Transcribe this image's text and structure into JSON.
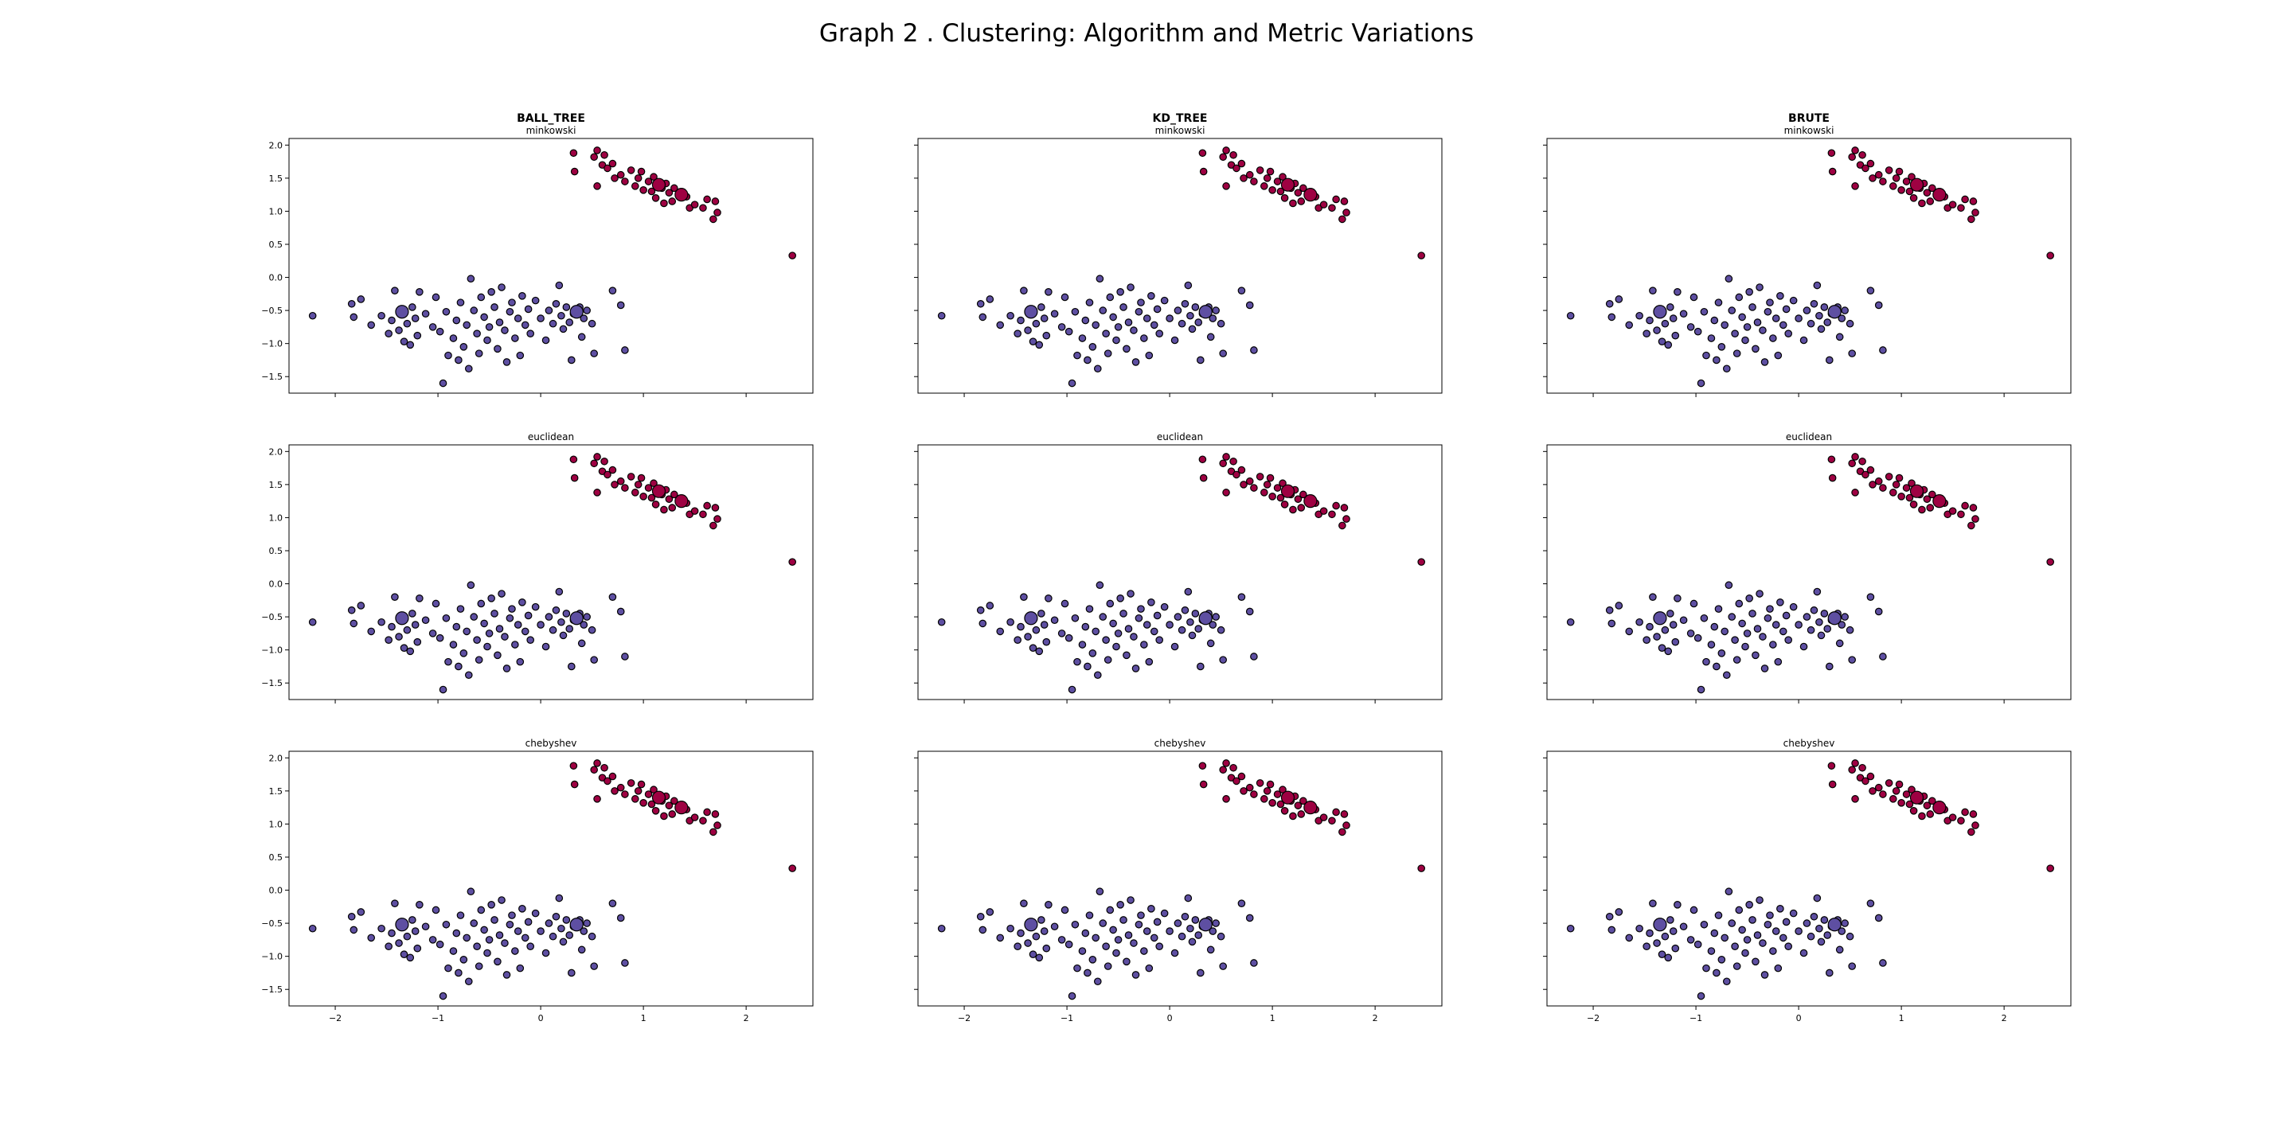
{
  "figure": {
    "suptitle": "Graph 2 . Clustering: Algorithm and Metric Variations"
  },
  "colors": {
    "cluster_0": "#5e4fa2",
    "cluster_1": "#9e0142",
    "marker_edge": "#000000"
  },
  "chart_data": {
    "type": "scatter",
    "grid": false,
    "legend": "none",
    "xlim": [
      -2.45,
      2.65
    ],
    "ylim": [
      -1.75,
      2.1
    ],
    "x_ticks": [
      -2,
      -1,
      0,
      1,
      2
    ],
    "y_ticks": [
      -1.5,
      -1.0,
      -0.5,
      0.0,
      0.5,
      1.0,
      1.5,
      2.0
    ],
    "x_tick_labels": [
      "−2",
      "−1",
      "0",
      "1",
      "2"
    ],
    "y_tick_labels": [
      "−1.5",
      "−1.0",
      "−0.5",
      "0.0",
      "0.5",
      "1.0",
      "1.5",
      "2.0"
    ],
    "algorithms": [
      "BALL_TREE",
      "KD_TREE",
      "BRUTE"
    ],
    "metrics": [
      "minkowski",
      "euclidean",
      "chebyshev"
    ],
    "centroids": [
      {
        "x": -1.35,
        "y": -0.52,
        "cluster": 0
      },
      {
        "x": 0.35,
        "y": -0.52,
        "cluster": 0
      },
      {
        "x": 1.15,
        "y": 1.4,
        "cluster": 1
      },
      {
        "x": 1.37,
        "y": 1.25,
        "cluster": 1
      }
    ],
    "points": [
      {
        "x": -2.22,
        "y": -0.58,
        "cluster": 0
      },
      {
        "x": -1.84,
        "y": -0.4,
        "cluster": 0
      },
      {
        "x": -1.82,
        "y": -0.6,
        "cluster": 0
      },
      {
        "x": -1.75,
        "y": -0.33,
        "cluster": 0
      },
      {
        "x": -1.65,
        "y": -0.72,
        "cluster": 0
      },
      {
        "x": -1.55,
        "y": -0.58,
        "cluster": 0
      },
      {
        "x": -1.48,
        "y": -0.85,
        "cluster": 0
      },
      {
        "x": -1.45,
        "y": -0.65,
        "cluster": 0
      },
      {
        "x": -1.42,
        "y": -0.2,
        "cluster": 0
      },
      {
        "x": -1.38,
        "y": -0.8,
        "cluster": 0
      },
      {
        "x": -1.33,
        "y": -0.97,
        "cluster": 0
      },
      {
        "x": -1.3,
        "y": -0.7,
        "cluster": 0
      },
      {
        "x": -1.27,
        "y": -1.02,
        "cluster": 0
      },
      {
        "x": -1.25,
        "y": -0.45,
        "cluster": 0
      },
      {
        "x": -1.22,
        "y": -0.62,
        "cluster": 0
      },
      {
        "x": -1.2,
        "y": -0.88,
        "cluster": 0
      },
      {
        "x": -1.18,
        "y": -0.22,
        "cluster": 0
      },
      {
        "x": -1.12,
        "y": -0.55,
        "cluster": 0
      },
      {
        "x": -1.05,
        "y": -0.75,
        "cluster": 0
      },
      {
        "x": -1.02,
        "y": -0.3,
        "cluster": 0
      },
      {
        "x": -0.98,
        "y": -0.82,
        "cluster": 0
      },
      {
        "x": -0.95,
        "y": -1.6,
        "cluster": 0
      },
      {
        "x": -0.92,
        "y": -0.52,
        "cluster": 0
      },
      {
        "x": -0.9,
        "y": -1.18,
        "cluster": 0
      },
      {
        "x": -0.85,
        "y": -0.92,
        "cluster": 0
      },
      {
        "x": -0.82,
        "y": -0.65,
        "cluster": 0
      },
      {
        "x": -0.8,
        "y": -1.25,
        "cluster": 0
      },
      {
        "x": -0.78,
        "y": -0.38,
        "cluster": 0
      },
      {
        "x": -0.75,
        "y": -1.05,
        "cluster": 0
      },
      {
        "x": -0.72,
        "y": -0.72,
        "cluster": 0
      },
      {
        "x": -0.7,
        "y": -1.38,
        "cluster": 0
      },
      {
        "x": -0.68,
        "y": -0.02,
        "cluster": 0
      },
      {
        "x": -0.65,
        "y": -0.5,
        "cluster": 0
      },
      {
        "x": -0.62,
        "y": -0.85,
        "cluster": 0
      },
      {
        "x": -0.6,
        "y": -1.15,
        "cluster": 0
      },
      {
        "x": -0.58,
        "y": -0.3,
        "cluster": 0
      },
      {
        "x": -0.55,
        "y": -0.6,
        "cluster": 0
      },
      {
        "x": -0.52,
        "y": -0.95,
        "cluster": 0
      },
      {
        "x": -0.5,
        "y": -0.75,
        "cluster": 0
      },
      {
        "x": -0.48,
        "y": -0.22,
        "cluster": 0
      },
      {
        "x": -0.45,
        "y": -0.45,
        "cluster": 0
      },
      {
        "x": -0.42,
        "y": -1.08,
        "cluster": 0
      },
      {
        "x": -0.4,
        "y": -0.68,
        "cluster": 0
      },
      {
        "x": -0.38,
        "y": -0.15,
        "cluster": 0
      },
      {
        "x": -0.35,
        "y": -0.8,
        "cluster": 0
      },
      {
        "x": -0.33,
        "y": -1.28,
        "cluster": 0
      },
      {
        "x": -0.3,
        "y": -0.52,
        "cluster": 0
      },
      {
        "x": -0.28,
        "y": -0.38,
        "cluster": 0
      },
      {
        "x": -0.25,
        "y": -0.92,
        "cluster": 0
      },
      {
        "x": -0.22,
        "y": -0.62,
        "cluster": 0
      },
      {
        "x": -0.2,
        "y": -1.18,
        "cluster": 0
      },
      {
        "x": -0.18,
        "y": -0.28,
        "cluster": 0
      },
      {
        "x": -0.15,
        "y": -0.72,
        "cluster": 0
      },
      {
        "x": -0.12,
        "y": -0.48,
        "cluster": 0
      },
      {
        "x": -0.1,
        "y": -0.85,
        "cluster": 0
      },
      {
        "x": -0.05,
        "y": -0.35,
        "cluster": 0
      },
      {
        "x": 0.0,
        "y": -0.62,
        "cluster": 0
      },
      {
        "x": 0.05,
        "y": -0.95,
        "cluster": 0
      },
      {
        "x": 0.08,
        "y": -0.5,
        "cluster": 0
      },
      {
        "x": 0.12,
        "y": -0.7,
        "cluster": 0
      },
      {
        "x": 0.15,
        "y": -0.4,
        "cluster": 0
      },
      {
        "x": 0.18,
        "y": -0.12,
        "cluster": 0
      },
      {
        "x": 0.2,
        "y": -0.58,
        "cluster": 0
      },
      {
        "x": 0.22,
        "y": -0.78,
        "cluster": 0
      },
      {
        "x": 0.25,
        "y": -0.45,
        "cluster": 0
      },
      {
        "x": 0.28,
        "y": -0.68,
        "cluster": 0
      },
      {
        "x": 0.3,
        "y": -1.25,
        "cluster": 0
      },
      {
        "x": 0.32,
        "y": -0.55,
        "cluster": 0
      },
      {
        "x": 0.38,
        "y": -0.45,
        "cluster": 0
      },
      {
        "x": 0.4,
        "y": -0.9,
        "cluster": 0
      },
      {
        "x": 0.42,
        "y": -0.62,
        "cluster": 0
      },
      {
        "x": 0.45,
        "y": -0.5,
        "cluster": 0
      },
      {
        "x": 0.5,
        "y": -0.7,
        "cluster": 0
      },
      {
        "x": 0.52,
        "y": -1.15,
        "cluster": 0
      },
      {
        "x": 0.7,
        "y": -0.2,
        "cluster": 0
      },
      {
        "x": 0.78,
        "y": -0.42,
        "cluster": 0
      },
      {
        "x": 0.82,
        "y": -1.1,
        "cluster": 0
      },
      {
        "x": 0.32,
        "y": 1.88,
        "cluster": 1
      },
      {
        "x": 0.33,
        "y": 1.6,
        "cluster": 1
      },
      {
        "x": 0.52,
        "y": 1.82,
        "cluster": 1
      },
      {
        "x": 0.55,
        "y": 1.92,
        "cluster": 1
      },
      {
        "x": 0.55,
        "y": 1.38,
        "cluster": 1
      },
      {
        "x": 0.6,
        "y": 1.7,
        "cluster": 1
      },
      {
        "x": 0.62,
        "y": 1.85,
        "cluster": 1
      },
      {
        "x": 0.65,
        "y": 1.65,
        "cluster": 1
      },
      {
        "x": 0.7,
        "y": 1.72,
        "cluster": 1
      },
      {
        "x": 0.72,
        "y": 1.5,
        "cluster": 1
      },
      {
        "x": 0.78,
        "y": 1.55,
        "cluster": 1
      },
      {
        "x": 0.82,
        "y": 1.45,
        "cluster": 1
      },
      {
        "x": 0.88,
        "y": 1.62,
        "cluster": 1
      },
      {
        "x": 0.92,
        "y": 1.38,
        "cluster": 1
      },
      {
        "x": 0.95,
        "y": 1.5,
        "cluster": 1
      },
      {
        "x": 0.98,
        "y": 1.6,
        "cluster": 1
      },
      {
        "x": 1.0,
        "y": 1.32,
        "cluster": 1
      },
      {
        "x": 1.05,
        "y": 1.45,
        "cluster": 1
      },
      {
        "x": 1.08,
        "y": 1.3,
        "cluster": 1
      },
      {
        "x": 1.1,
        "y": 1.52,
        "cluster": 1
      },
      {
        "x": 1.12,
        "y": 1.2,
        "cluster": 1
      },
      {
        "x": 1.18,
        "y": 1.35,
        "cluster": 1
      },
      {
        "x": 1.2,
        "y": 1.12,
        "cluster": 1
      },
      {
        "x": 1.22,
        "y": 1.42,
        "cluster": 1
      },
      {
        "x": 1.25,
        "y": 1.28,
        "cluster": 1
      },
      {
        "x": 1.28,
        "y": 1.15,
        "cluster": 1
      },
      {
        "x": 1.3,
        "y": 1.35,
        "cluster": 1
      },
      {
        "x": 1.42,
        "y": 1.22,
        "cluster": 1
      },
      {
        "x": 1.45,
        "y": 1.05,
        "cluster": 1
      },
      {
        "x": 1.5,
        "y": 1.1,
        "cluster": 1
      },
      {
        "x": 1.58,
        "y": 1.05,
        "cluster": 1
      },
      {
        "x": 1.62,
        "y": 1.18,
        "cluster": 1
      },
      {
        "x": 1.68,
        "y": 0.88,
        "cluster": 1
      },
      {
        "x": 1.7,
        "y": 1.15,
        "cluster": 1
      },
      {
        "x": 1.72,
        "y": 0.98,
        "cluster": 1
      },
      {
        "x": 2.45,
        "y": 0.33,
        "cluster": 1
      }
    ]
  }
}
